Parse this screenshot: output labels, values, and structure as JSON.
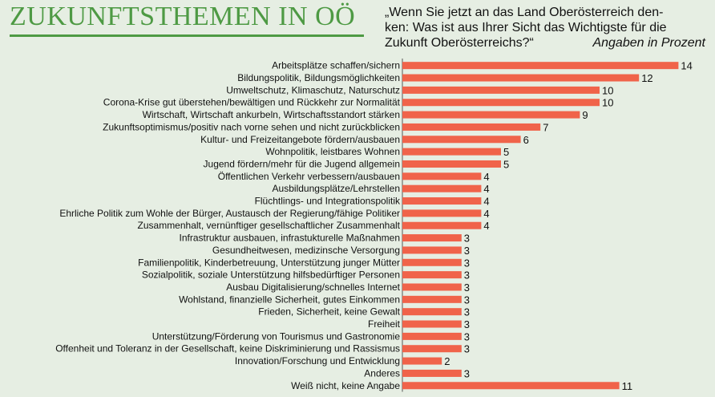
{
  "title": "ZUKUNFTSTHEMEN IN OÖ",
  "question_lines": [
    "„Wenn Sie jetzt an das Land Oberösterreich den-",
    "ken: Was ist aus Ihrer Sicht das Wichtigste für die",
    "Zukunft Oberösterreichs?“"
  ],
  "unit_note": "Angaben in Prozent",
  "colors": {
    "bar": "#f0634a",
    "title": "#4e9a44",
    "background": "#e6eee3"
  },
  "chart_data": {
    "type": "bar",
    "orientation": "horizontal",
    "categories": [
      "Arbeitsplätze schaffen/sichern",
      "Bildungspolitik, Bildungsmöglichkeiten",
      "Umweltschutz, Klimaschutz, Naturschutz",
      "Corona-Krise gut überstehen/bewältigen und Rückkehr zur Normalität",
      "Wirtschaft, Wirtschaft ankurbeln, Wirtschaftsstandort stärken",
      "Zukunftsoptimismus/positiv nach vorne sehen und nicht zurückblicken",
      "Kultur- und Freizeitangebote fördern/ausbauen",
      "Wohnpolitik, leistbares Wohnen",
      "Jugend fördern/mehr für die Jugend allgemein",
      "Öffentlichen Verkehr verbessern/ausbauen",
      "Ausbildungsplätze/Lehrstellen",
      "Flüchtlings- und Integrationspolitik",
      "Ehrliche Politik zum Wohle der Bürger, Austausch der Regierung/fähige Politiker",
      "Zusammenhalt, vernünftiger gesellschaftlicher Zusammenhalt",
      "Infrastruktur ausbauen, infrastukturelle Maßnahmen",
      "Gesundheitwesen, medizinsche Versorgung",
      "Familienpolitik, Kinderbetreuung, Unterstützung junger Mütter",
      "Sozialpolitik, soziale Unterstützung hilfsbedürftiger Personen",
      "Ausbau Digitalisierung/schnelles Internet",
      "Wohlstand, finanzielle Sicherheit, gutes Einkommen",
      "Frieden, Sicherheit, keine Gewalt",
      "Freiheit",
      "Unterstützung/Förderung von Tourismus und Gastronomie",
      "Offenheit und Toleranz in der Gesellschaft, keine Diskriminierung und Rassismus",
      "Innovation/Forschung und Entwicklung",
      "Anderes",
      "Weiß nicht, keine Angabe"
    ],
    "values": [
      14,
      12,
      10,
      10,
      9,
      7,
      6,
      5,
      5,
      4,
      4,
      4,
      4,
      4,
      3,
      3,
      3,
      3,
      3,
      3,
      3,
      3,
      3,
      3,
      2,
      3,
      11
    ],
    "xlim": [
      0,
      14
    ],
    "grid": false,
    "legend": "none"
  }
}
